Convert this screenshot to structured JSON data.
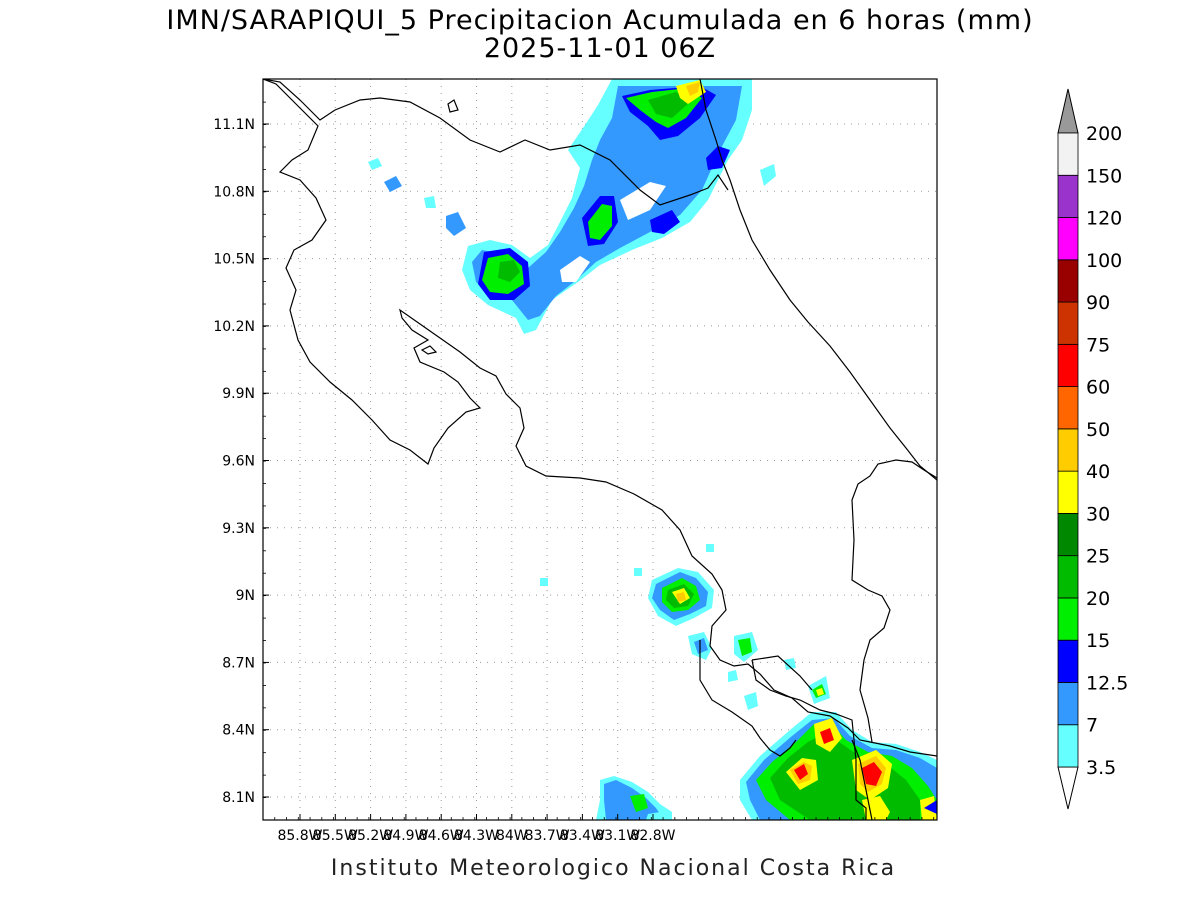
{
  "title": {
    "line1": "IMN/SARAPIQUI_5 Precipitacion Acumulada en 6 horas (mm)",
    "line2": "2025-11-01 06Z"
  },
  "credit": "Instituto Meteorologico Nacional Costa Rica",
  "axes": {
    "lon_labels": [
      "85.8W",
      "85.5W",
      "85.2W",
      "84.9W",
      "84.6W",
      "84.3W",
      "84W",
      "83.7W",
      "83.4W",
      "83.1W",
      "82.8W"
    ],
    "lat_labels": [
      "11.1N",
      "10.8N",
      "10.5N",
      "10.2N",
      "9.9N",
      "9.6N",
      "9.3N",
      "9N",
      "8.7N",
      "8.4N",
      "8.1N"
    ],
    "lon_range": [
      -85.97,
      -82.6
    ],
    "lat_range": [
      8.0,
      11.3
    ],
    "grid": "dotted"
  },
  "colorbar": {
    "levels": [
      "3.5",
      "7",
      "12.5",
      "15",
      "20",
      "25",
      "30",
      "40",
      "50",
      "60",
      "75",
      "90",
      "100",
      "120",
      "150",
      "200"
    ],
    "colors": [
      "#ffffff",
      "#66ffff",
      "#3399ff",
      "#0000ff",
      "#00ee00",
      "#00bb00",
      "#008800",
      "#ffff00",
      "#ffcc00",
      "#ff6600",
      "#ff0000",
      "#cc3300",
      "#990000",
      "#ff00ff",
      "#9933cc",
      "#f2f2f2",
      "#999999"
    ]
  },
  "precipitation_colors": {
    "cyan": "#66ffff",
    "lightblue": "#3399ff",
    "blue": "#0000ff",
    "green": "#00ee00",
    "dgreen": "#00bb00",
    "ddgreen": "#008800",
    "yellow": "#ffff00",
    "orange": "#ffcc00",
    "red": "#ff0000"
  }
}
